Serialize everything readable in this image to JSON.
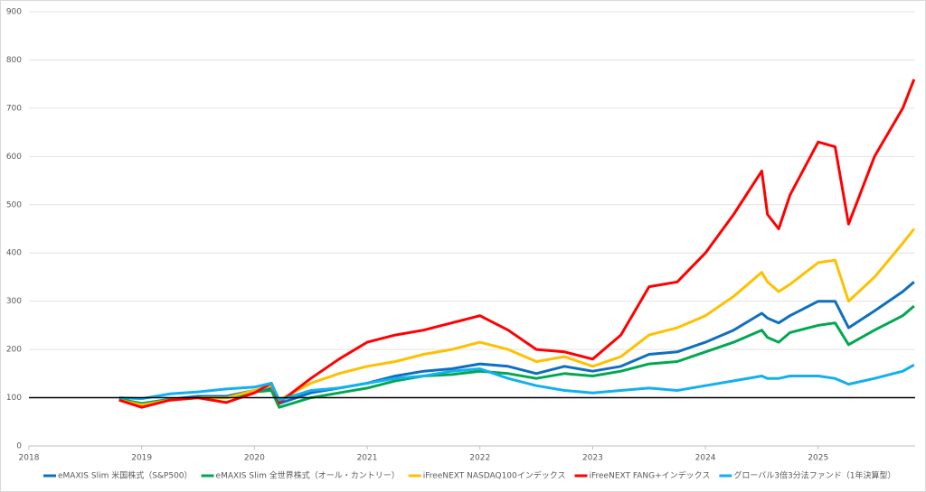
{
  "chart_data": {
    "type": "line",
    "x": [
      2018.8,
      2019.0,
      2019.25,
      2019.5,
      2019.75,
      2020.0,
      2020.15,
      2020.22,
      2020.5,
      2020.75,
      2021.0,
      2021.25,
      2021.5,
      2021.75,
      2022.0,
      2022.25,
      2022.5,
      2022.75,
      2023.0,
      2023.25,
      2023.5,
      2023.75,
      2024.0,
      2024.25,
      2024.5,
      2024.55,
      2024.65,
      2024.75,
      2025.0,
      2025.15,
      2025.27,
      2025.5,
      2025.75,
      2025.85
    ],
    "series": [
      {
        "name": "eMAXIS Slim 米国株式（S&P500）",
        "color": "#0f6fbf",
        "values": [
          97,
          88,
          97,
          103,
          103,
          115,
          120,
          88,
          110,
          120,
          130,
          145,
          155,
          160,
          170,
          165,
          150,
          165,
          155,
          165,
          190,
          195,
          215,
          240,
          275,
          265,
          255,
          270,
          300,
          300,
          245,
          280,
          320,
          340
        ]
      },
      {
        "name": "eMAXIS Slim 全世界株式（オール・カントリー）",
        "color": "#00a850",
        "values": [
          97,
          88,
          96,
          100,
          100,
          112,
          115,
          80,
          100,
          110,
          120,
          135,
          145,
          148,
          155,
          150,
          140,
          150,
          145,
          155,
          170,
          175,
          195,
          215,
          240,
          225,
          215,
          235,
          250,
          255,
          210,
          240,
          270,
          290
        ]
      },
      {
        "name": "iFreeNEXT NASDAQ100インデックス",
        "color": "#ffc000",
        "values": [
          95,
          85,
          95,
          100,
          100,
          115,
          125,
          95,
          130,
          150,
          165,
          175,
          190,
          200,
          215,
          200,
          175,
          185,
          165,
          185,
          230,
          245,
          270,
          310,
          360,
          340,
          320,
          335,
          380,
          385,
          300,
          350,
          420,
          450
        ]
      },
      {
        "name": "iFreeNEXT FANG+インデックス",
        "color": "#ff0000",
        "values": [
          95,
          80,
          95,
          100,
          90,
          110,
          130,
          90,
          140,
          180,
          215,
          230,
          240,
          255,
          270,
          240,
          200,
          195,
          180,
          230,
          330,
          340,
          400,
          480,
          570,
          480,
          450,
          520,
          630,
          620,
          460,
          600,
          700,
          760
        ]
      },
      {
        "name": "グローバル3倍3分法ファンド（1年決算型）",
        "color": "#12b0ee",
        "values": [
          100,
          98,
          108,
          112,
          118,
          122,
          130,
          95,
          115,
          120,
          130,
          140,
          145,
          155,
          160,
          140,
          125,
          115,
          110,
          115,
          120,
          115,
          125,
          135,
          145,
          140,
          140,
          145,
          145,
          140,
          128,
          140,
          155,
          168
        ]
      }
    ],
    "reference_line": 100,
    "xlim": [
      2018,
      2025.86
    ],
    "xticks": [
      2018,
      2019,
      2020,
      2021,
      2022,
      2023,
      2024,
      2025
    ],
    "ylim": [
      0,
      900
    ],
    "yticks": [
      0,
      100,
      200,
      300,
      400,
      500,
      600,
      700,
      800,
      900
    ],
    "grid": true,
    "legend": "bottom"
  }
}
